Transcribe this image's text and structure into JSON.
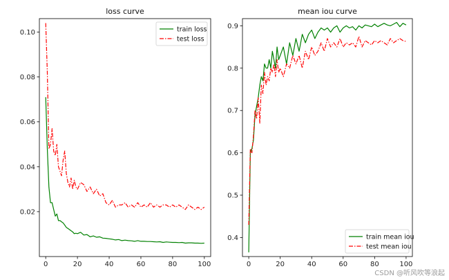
{
  "chart_data": [
    {
      "type": "line",
      "title": "loss curve",
      "xlabel": "",
      "ylabel": "",
      "xlim": [
        -4,
        104
      ],
      "ylim": [
        -0.0,
        0.106
      ],
      "xticks": [
        0,
        20,
        40,
        60,
        80,
        100
      ],
      "xtick_labels": [
        "0",
        "20",
        "40",
        "60",
        "80",
        "100"
      ],
      "yticks": [
        0.02,
        0.04,
        0.06,
        0.08,
        0.1
      ],
      "ytick_labels": [
        "0.02",
        "0.04",
        "0.06",
        "0.08",
        "0.10"
      ],
      "grid": false,
      "legend_position": "top-right",
      "series": [
        {
          "name": "train loss",
          "color": "#008000",
          "dash": "solid",
          "x": [
            0,
            1,
            2,
            3,
            4,
            5,
            6,
            7,
            8,
            9,
            10,
            11,
            12,
            13,
            14,
            15,
            16,
            17,
            18,
            19,
            20,
            22,
            24,
            26,
            28,
            30,
            32,
            34,
            36,
            38,
            40,
            42,
            44,
            46,
            48,
            50,
            52,
            54,
            56,
            58,
            60,
            62,
            64,
            66,
            68,
            70,
            72,
            74,
            76,
            78,
            80,
            82,
            84,
            86,
            88,
            90,
            92,
            94,
            96,
            98,
            100
          ],
          "y": [
            0.071,
            0.048,
            0.031,
            0.024,
            0.024,
            0.021,
            0.018,
            0.019,
            0.016,
            0.016,
            0.0155,
            0.015,
            0.014,
            0.013,
            0.0125,
            0.012,
            0.0115,
            0.011,
            0.0102,
            0.0104,
            0.0102,
            0.0108,
            0.0096,
            0.0098,
            0.0088,
            0.0092,
            0.0086,
            0.0088,
            0.0082,
            0.0081,
            0.0079,
            0.0077,
            0.0074,
            0.0076,
            0.0071,
            0.0073,
            0.0071,
            0.007,
            0.0068,
            0.0071,
            0.0068,
            0.0068,
            0.0067,
            0.0067,
            0.0066,
            0.0065,
            0.0066,
            0.0063,
            0.0065,
            0.0064,
            0.0063,
            0.0063,
            0.0062,
            0.0063,
            0.006,
            0.0061,
            0.0061,
            0.006,
            0.006,
            0.0059,
            0.006
          ]
        },
        {
          "name": "test loss",
          "color": "#ff0000",
          "dash": "dashdot",
          "x": [
            0,
            1,
            2,
            3,
            4,
            5,
            6,
            7,
            8,
            9,
            10,
            11,
            12,
            13,
            14,
            15,
            16,
            17,
            18,
            19,
            20,
            22,
            24,
            26,
            28,
            30,
            32,
            34,
            36,
            38,
            40,
            42,
            44,
            46,
            48,
            50,
            52,
            54,
            56,
            58,
            60,
            62,
            64,
            66,
            68,
            70,
            72,
            74,
            76,
            78,
            80,
            82,
            84,
            86,
            88,
            90,
            92,
            94,
            96,
            98,
            100
          ],
          "y": [
            0.104,
            0.082,
            0.048,
            0.05,
            0.057,
            0.047,
            0.045,
            0.05,
            0.04,
            0.038,
            0.036,
            0.043,
            0.047,
            0.037,
            0.033,
            0.031,
            0.035,
            0.03,
            0.034,
            0.031,
            0.03,
            0.033,
            0.032,
            0.029,
            0.031,
            0.028,
            0.03,
            0.027,
            0.028,
            0.024,
            0.023,
            0.025,
            0.022,
            0.023,
            0.023,
            0.024,
            0.022,
            0.023,
            0.022,
            0.024,
            0.022,
            0.023,
            0.022,
            0.024,
            0.022,
            0.023,
            0.022,
            0.023,
            0.023,
            0.022,
            0.023,
            0.022,
            0.023,
            0.022,
            0.021,
            0.023,
            0.022,
            0.021,
            0.022,
            0.021,
            0.022
          ]
        }
      ]
    },
    {
      "type": "line",
      "title": "mean iou curve",
      "xlabel": "",
      "ylabel": "",
      "xlim": [
        -4,
        104
      ],
      "ylim": [
        0.355,
        0.917
      ],
      "xticks": [
        0,
        20,
        40,
        60,
        80,
        100
      ],
      "xtick_labels": [
        "0",
        "20",
        "40",
        "60",
        "80",
        "100"
      ],
      "yticks": [
        0.4,
        0.5,
        0.6,
        0.7,
        0.8,
        0.9
      ],
      "ytick_labels": [
        "0.4",
        "0.5",
        "0.6",
        "0.7",
        "0.8",
        "0.9"
      ],
      "grid": false,
      "legend_position": "bottom-right",
      "series": [
        {
          "name": "train mean iou",
          "color": "#008000",
          "dash": "solid",
          "x": [
            0,
            1,
            2,
            3,
            4,
            5,
            6,
            7,
            8,
            9,
            10,
            11,
            12,
            13,
            14,
            15,
            16,
            17,
            18,
            19,
            20,
            22,
            24,
            26,
            28,
            30,
            32,
            34,
            36,
            38,
            40,
            42,
            44,
            46,
            48,
            50,
            52,
            54,
            56,
            58,
            60,
            62,
            64,
            66,
            68,
            70,
            72,
            74,
            76,
            78,
            80,
            82,
            84,
            86,
            88,
            90,
            92,
            94,
            96,
            98,
            100
          ],
          "y": [
            0.365,
            0.6,
            0.61,
            0.63,
            0.69,
            0.71,
            0.73,
            0.76,
            0.78,
            0.77,
            0.81,
            0.8,
            0.8,
            0.82,
            0.8,
            0.84,
            0.82,
            0.8,
            0.85,
            0.82,
            0.83,
            0.85,
            0.81,
            0.86,
            0.83,
            0.87,
            0.84,
            0.88,
            0.86,
            0.88,
            0.89,
            0.87,
            0.885,
            0.895,
            0.89,
            0.895,
            0.885,
            0.895,
            0.9,
            0.885,
            0.895,
            0.9,
            0.895,
            0.898,
            0.89,
            0.9,
            0.895,
            0.902,
            0.9,
            0.898,
            0.904,
            0.898,
            0.902,
            0.906,
            0.902,
            0.9,
            0.904,
            0.908,
            0.898,
            0.906,
            0.902
          ]
        },
        {
          "name": "test mean iou",
          "color": "#ff0000",
          "dash": "dashdot",
          "x": [
            0,
            1,
            2,
            3,
            4,
            5,
            6,
            7,
            8,
            9,
            10,
            11,
            12,
            13,
            14,
            15,
            16,
            17,
            18,
            19,
            20,
            22,
            24,
            26,
            28,
            30,
            32,
            34,
            36,
            38,
            40,
            42,
            44,
            46,
            48,
            50,
            52,
            54,
            56,
            58,
            60,
            62,
            64,
            66,
            68,
            70,
            72,
            74,
            76,
            78,
            80,
            82,
            84,
            86,
            88,
            90,
            92,
            94,
            96,
            98,
            100
          ],
          "y": [
            0.43,
            0.61,
            0.6,
            0.64,
            0.7,
            0.68,
            0.73,
            0.67,
            0.76,
            0.74,
            0.79,
            0.76,
            0.78,
            0.77,
            0.8,
            0.79,
            0.81,
            0.78,
            0.82,
            0.79,
            0.8,
            0.78,
            0.81,
            0.8,
            0.83,
            0.81,
            0.83,
            0.8,
            0.84,
            0.82,
            0.85,
            0.83,
            0.84,
            0.86,
            0.84,
            0.87,
            0.85,
            0.86,
            0.85,
            0.87,
            0.85,
            0.86,
            0.855,
            0.86,
            0.85,
            0.875,
            0.85,
            0.865,
            0.86,
            0.855,
            0.865,
            0.86,
            0.865,
            0.86,
            0.855,
            0.87,
            0.86,
            0.865,
            0.87,
            0.865,
            0.863
          ]
        }
      ]
    }
  ],
  "watermark": "CSDN @听风吹等浪起"
}
